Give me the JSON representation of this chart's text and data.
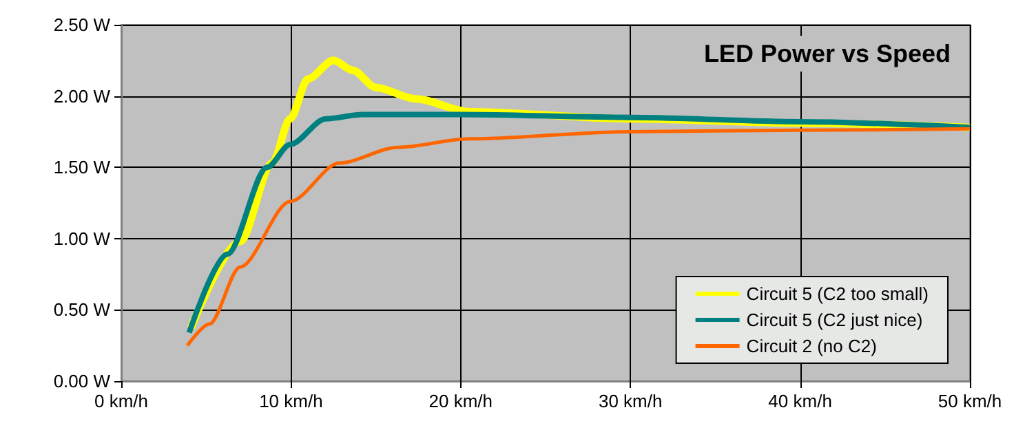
{
  "chart_data": {
    "type": "line",
    "title": "LED Power vs Speed",
    "xlim": [
      0,
      50
    ],
    "xticks": [
      {
        "value": 0,
        "label": "0 km/h"
      },
      {
        "value": 10,
        "label": "10 km/h"
      },
      {
        "value": 20,
        "label": "20 km/h"
      },
      {
        "value": 30,
        "label": "30 km/h"
      },
      {
        "value": 40,
        "label": "40 km/h"
      },
      {
        "value": 50,
        "label": "50 km/h"
      }
    ],
    "ylim": [
      0,
      2.5
    ],
    "yticks": [
      {
        "value": 0,
        "label": "0.00 W"
      },
      {
        "value": 0.5,
        "label": "0.50 W"
      },
      {
        "value": 1,
        "label": "1.00 W"
      },
      {
        "value": 1.5,
        "label": "1.50 W"
      },
      {
        "value": 2,
        "label": "2.00 W"
      },
      {
        "value": 2.5,
        "label": "2.50 W"
      }
    ],
    "grid": true,
    "legend": "bottom right",
    "marker": "none",
    "line_style": "solid",
    "series": [
      {
        "name": "Circuit 5 (C2 too small)",
        "color": "#ffff00",
        "x": [
          4.1,
          7,
          8.9,
          9.95,
          11,
          12.5,
          13.65,
          15,
          17.35,
          20.5,
          30,
          40,
          50
        ],
        "values": [
          0.37,
          0.98,
          1.53,
          1.84,
          2.12,
          2.25,
          2.18,
          2.06,
          1.98,
          1.89,
          1.84,
          1.81,
          1.78
        ]
      },
      {
        "name": "Circuit 5 (C2 just nice)",
        "color": "#008080",
        "x": [
          4,
          6.25,
          8.6,
          9.95,
          12.05,
          14.2,
          20,
          30,
          40,
          50
        ],
        "values": [
          0.34,
          0.89,
          1.5,
          1.66,
          1.84,
          1.87,
          1.87,
          1.85,
          1.82,
          1.78
        ]
      },
      {
        "name": "Circuit 2 (no C2)",
        "color": "#ff6600",
        "x": [
          3.9,
          5.2,
          7,
          9.95,
          12.85,
          16.3,
          20.5,
          30,
          40,
          50
        ],
        "values": [
          0.25,
          0.4,
          0.8,
          1.26,
          1.53,
          1.64,
          1.7,
          1.75,
          1.76,
          1.77
        ]
      }
    ]
  }
}
